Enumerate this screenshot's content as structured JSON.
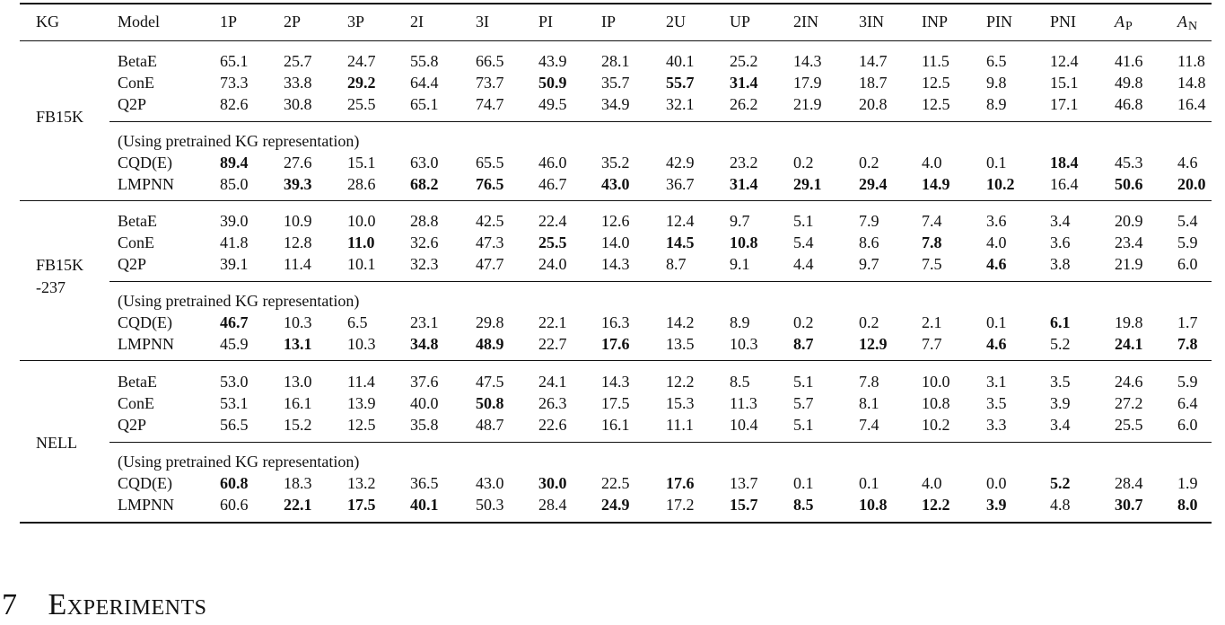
{
  "table": {
    "headers": [
      "KG",
      "Model",
      "1P",
      "2P",
      "3P",
      "2I",
      "3I",
      "PI",
      "IP",
      "2U",
      "UP",
      "2IN",
      "3IN",
      "INP",
      "PIN",
      "PNI"
    ],
    "header_ap": {
      "base": "A",
      "sub": "P"
    },
    "header_an": {
      "base": "A",
      "sub": "N"
    },
    "pretrained_note": "(Using pretrained KG representation)",
    "groups": [
      {
        "kg_lines": [
          "FB15K"
        ],
        "baselines": [
          {
            "model": "BetaE",
            "values": [
              "65.1",
              "25.7",
              "24.7",
              "55.8",
              "66.5",
              "43.9",
              "28.1",
              "40.1",
              "25.2",
              "14.3",
              "14.7",
              "11.5",
              "6.5",
              "12.4",
              "41.6",
              "11.8"
            ],
            "bold": []
          },
          {
            "model": "ConE",
            "values": [
              "73.3",
              "33.8",
              "29.2",
              "64.4",
              "73.7",
              "50.9",
              "35.7",
              "55.7",
              "31.4",
              "17.9",
              "18.7",
              "12.5",
              "9.8",
              "15.1",
              "49.8",
              "14.8"
            ],
            "bold": [
              2,
              5,
              7,
              8
            ]
          },
          {
            "model": "Q2P",
            "values": [
              "82.6",
              "30.8",
              "25.5",
              "65.1",
              "74.7",
              "49.5",
              "34.9",
              "32.1",
              "26.2",
              "21.9",
              "20.8",
              "12.5",
              "8.9",
              "17.1",
              "46.8",
              "16.4"
            ],
            "bold": []
          }
        ],
        "pretrained": [
          {
            "model": "CQD(E)",
            "values": [
              "89.4",
              "27.6",
              "15.1",
              "63.0",
              "65.5",
              "46.0",
              "35.2",
              "42.9",
              "23.2",
              "0.2",
              "0.2",
              "4.0",
              "0.1",
              "18.4",
              "45.3",
              "4.6"
            ],
            "bold": [
              0,
              13
            ]
          },
          {
            "model": "LMPNN",
            "values": [
              "85.0",
              "39.3",
              "28.6",
              "68.2",
              "76.5",
              "46.7",
              "43.0",
              "36.7",
              "31.4",
              "29.1",
              "29.4",
              "14.9",
              "10.2",
              "16.4",
              "50.6",
              "20.0"
            ],
            "bold": [
              1,
              3,
              4,
              6,
              8,
              9,
              10,
              11,
              12,
              14,
              15
            ]
          }
        ]
      },
      {
        "kg_lines": [
          "FB15K",
          "-237"
        ],
        "baselines": [
          {
            "model": "BetaE",
            "values": [
              "39.0",
              "10.9",
              "10.0",
              "28.8",
              "42.5",
              "22.4",
              "12.6",
              "12.4",
              "9.7",
              "5.1",
              "7.9",
              "7.4",
              "3.6",
              "3.4",
              "20.9",
              "5.4"
            ],
            "bold": []
          },
          {
            "model": "ConE",
            "values": [
              "41.8",
              "12.8",
              "11.0",
              "32.6",
              "47.3",
              "25.5",
              "14.0",
              "14.5",
              "10.8",
              "5.4",
              "8.6",
              "7.8",
              "4.0",
              "3.6",
              "23.4",
              "5.9"
            ],
            "bold": [
              2,
              5,
              7,
              8,
              11
            ]
          },
          {
            "model": "Q2P",
            "values": [
              "39.1",
              "11.4",
              "10.1",
              "32.3",
              "47.7",
              "24.0",
              "14.3",
              "8.7",
              "9.1",
              "4.4",
              "9.7",
              "7.5",
              "4.6",
              "3.8",
              "21.9",
              "6.0"
            ],
            "bold": [
              12
            ]
          }
        ],
        "pretrained": [
          {
            "model": "CQD(E)",
            "values": [
              "46.7",
              "10.3",
              "6.5",
              "23.1",
              "29.8",
              "22.1",
              "16.3",
              "14.2",
              "8.9",
              "0.2",
              "0.2",
              "2.1",
              "0.1",
              "6.1",
              "19.8",
              "1.7"
            ],
            "bold": [
              0,
              13
            ]
          },
          {
            "model": "LMPNN",
            "values": [
              "45.9",
              "13.1",
              "10.3",
              "34.8",
              "48.9",
              "22.7",
              "17.6",
              "13.5",
              "10.3",
              "8.7",
              "12.9",
              "7.7",
              "4.6",
              "5.2",
              "24.1",
              "7.8"
            ],
            "bold": [
              1,
              3,
              4,
              6,
              9,
              10,
              12,
              14,
              15
            ]
          }
        ]
      },
      {
        "kg_lines": [
          "NELL"
        ],
        "baselines": [
          {
            "model": "BetaE",
            "values": [
              "53.0",
              "13.0",
              "11.4",
              "37.6",
              "47.5",
              "24.1",
              "14.3",
              "12.2",
              "8.5",
              "5.1",
              "7.8",
              "10.0",
              "3.1",
              "3.5",
              "24.6",
              "5.9"
            ],
            "bold": []
          },
          {
            "model": "ConE",
            "values": [
              "53.1",
              "16.1",
              "13.9",
              "40.0",
              "50.8",
              "26.3",
              "17.5",
              "15.3",
              "11.3",
              "5.7",
              "8.1",
              "10.8",
              "3.5",
              "3.9",
              "27.2",
              "6.4"
            ],
            "bold": [
              4
            ]
          },
          {
            "model": "Q2P",
            "values": [
              "56.5",
              "15.2",
              "12.5",
              "35.8",
              "48.7",
              "22.6",
              "16.1",
              "11.1",
              "10.4",
              "5.1",
              "7.4",
              "10.2",
              "3.3",
              "3.4",
              "25.5",
              "6.0"
            ],
            "bold": []
          }
        ],
        "pretrained": [
          {
            "model": "CQD(E)",
            "values": [
              "60.8",
              "18.3",
              "13.2",
              "36.5",
              "43.0",
              "30.0",
              "22.5",
              "17.6",
              "13.7",
              "0.1",
              "0.1",
              "4.0",
              "0.0",
              "5.2",
              "28.4",
              "1.9"
            ],
            "bold": [
              0,
              5,
              7,
              13
            ]
          },
          {
            "model": "LMPNN",
            "values": [
              "60.6",
              "22.1",
              "17.5",
              "40.1",
              "50.3",
              "28.4",
              "24.9",
              "17.2",
              "15.7",
              "8.5",
              "10.8",
              "12.2",
              "3.9",
              "4.8",
              "30.7",
              "8.0"
            ],
            "bold": [
              1,
              2,
              3,
              6,
              8,
              9,
              10,
              11,
              12,
              14,
              15
            ]
          }
        ]
      }
    ]
  },
  "section": {
    "number": "7",
    "title": "Experiments"
  }
}
